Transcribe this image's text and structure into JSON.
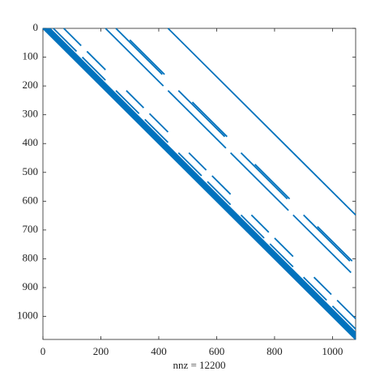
{
  "chart_data": {
    "type": "spy",
    "xlabel": "nnz = 12200",
    "color": "#0072bd",
    "xlim": [
      0,
      1080
    ],
    "ylim": [
      0,
      1080
    ],
    "y_direction": "reverse",
    "xticks": [
      0,
      200,
      400,
      600,
      800,
      1000
    ],
    "yticks": [
      0,
      100,
      200,
      300,
      400,
      500,
      600,
      700,
      800,
      900,
      1000
    ],
    "segments": [
      [
        0,
        0,
        1080
      ],
      [
        0,
        6,
        1074
      ],
      [
        0,
        12,
        1068
      ],
      [
        0,
        18,
        1062
      ],
      [
        0,
        24,
        1056
      ],
      [
        0,
        432,
        648
      ],
      [
        0,
        36,
        80
      ],
      [
        100,
        136,
        80
      ],
      [
        0,
        72,
        60
      ],
      [
        80,
        152,
        64
      ],
      [
        0,
        216,
        200
      ],
      [
        0,
        252,
        160
      ],
      [
        40,
        300,
        120
      ],
      [
        216,
        252,
        80
      ],
      [
        316,
        352,
        80
      ],
      [
        216,
        288,
        60
      ],
      [
        296,
        368,
        64
      ],
      [
        216,
        432,
        200
      ],
      [
        216,
        468,
        160
      ],
      [
        256,
        516,
        120
      ],
      [
        432,
        468,
        80
      ],
      [
        532,
        568,
        80
      ],
      [
        432,
        504,
        60
      ],
      [
        512,
        584,
        64
      ],
      [
        432,
        648,
        200
      ],
      [
        432,
        684,
        160
      ],
      [
        472,
        732,
        120
      ],
      [
        648,
        684,
        80
      ],
      [
        748,
        784,
        80
      ],
      [
        648,
        720,
        60
      ],
      [
        728,
        800,
        64
      ],
      [
        648,
        864,
        200
      ],
      [
        648,
        900,
        160
      ],
      [
        688,
        948,
        120
      ],
      [
        864,
        900,
        80
      ],
      [
        964,
        1000,
        80
      ],
      [
        864,
        936,
        60
      ],
      [
        944,
        1016,
        64
      ]
    ]
  }
}
